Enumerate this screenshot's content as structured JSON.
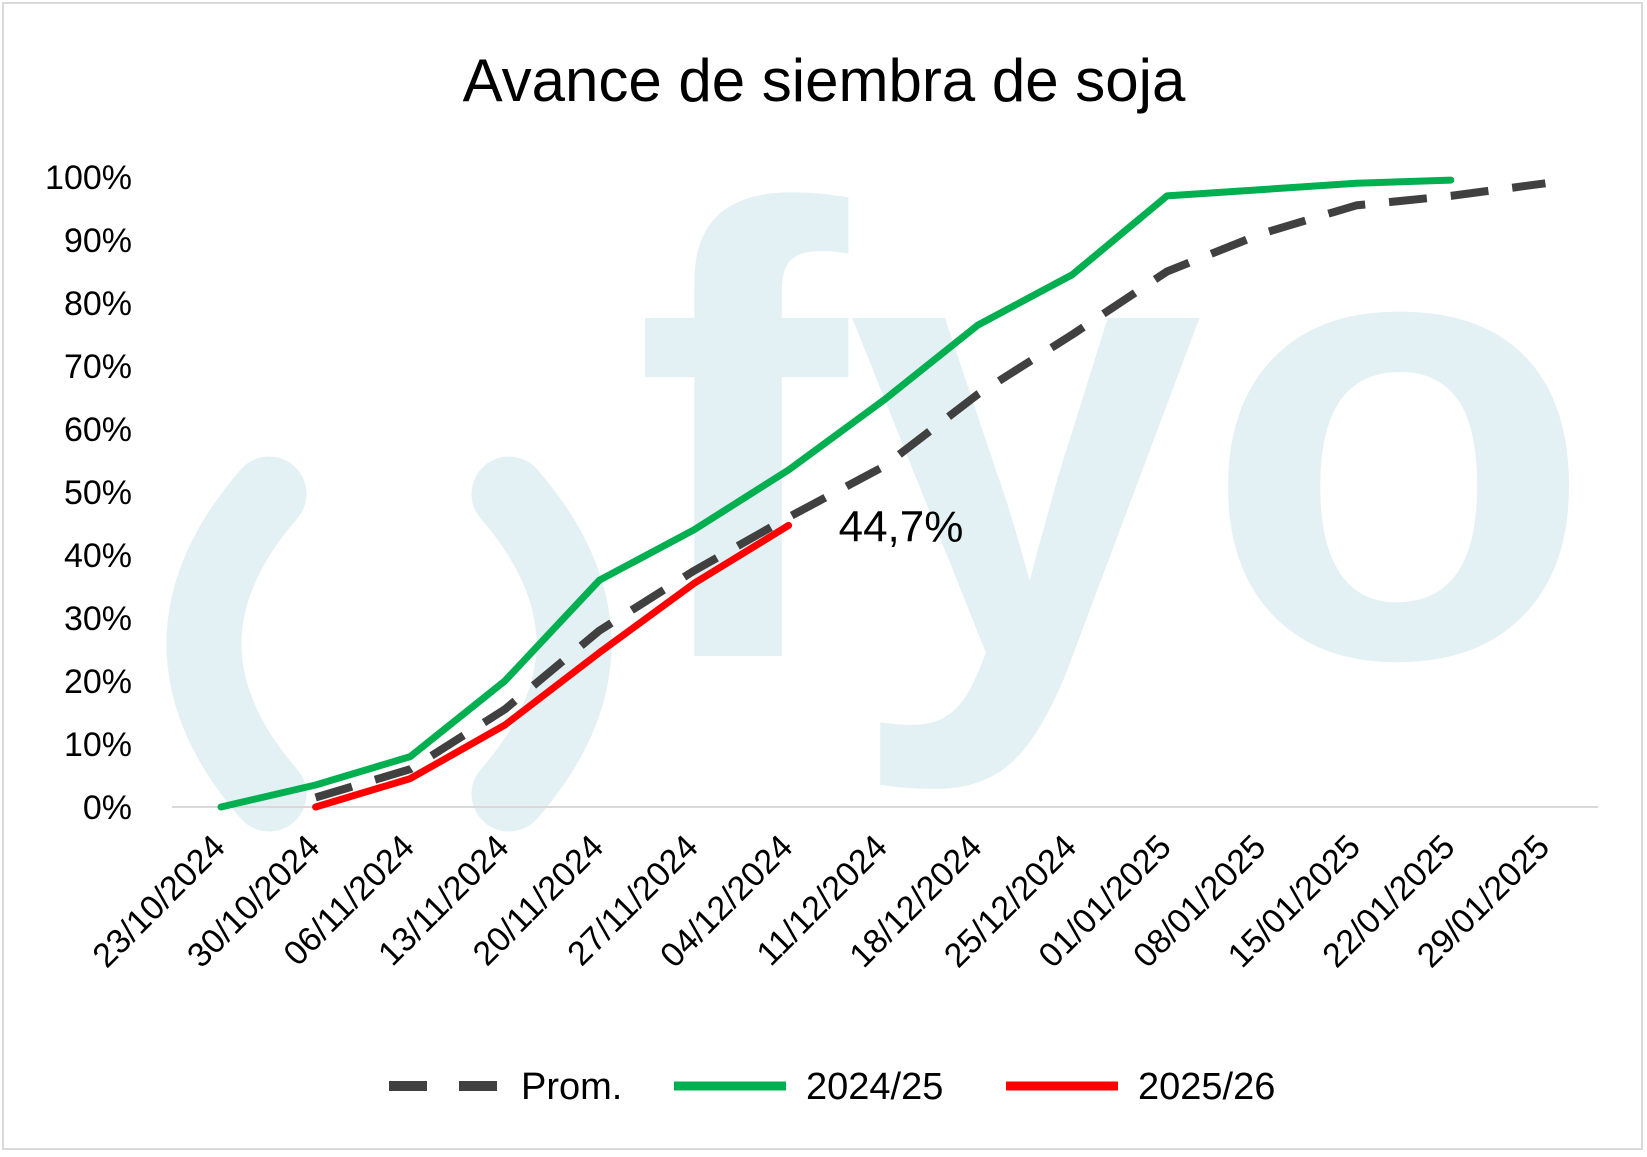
{
  "chart_data": {
    "type": "line",
    "title": "Avance de siembra de soja",
    "xlabel": "",
    "ylabel": "",
    "categories": [
      "23/10/2024",
      "30/10/2024",
      "06/11/2024",
      "13/11/2024",
      "20/11/2024",
      "27/11/2024",
      "04/12/2024",
      "11/12/2024",
      "18/12/2024",
      "25/12/2024",
      "01/01/2025",
      "08/01/2025",
      "15/01/2025",
      "22/01/2025",
      "29/01/2025"
    ],
    "y_ticks": [
      "0%",
      "10%",
      "20%",
      "30%",
      "40%",
      "50%",
      "60%",
      "70%",
      "80%",
      "90%",
      "100%"
    ],
    "ylim": [
      0,
      100
    ],
    "grid": false,
    "legend_position": "bottom",
    "series": [
      {
        "name": "Prom.",
        "style": "dashed",
        "color": "#404040",
        "values": [
          null,
          1.5,
          6,
          15.5,
          28,
          37.5,
          46,
          54,
          65.5,
          75,
          85,
          91,
          95.5,
          97,
          99
        ]
      },
      {
        "name": "2024/25",
        "style": "solid",
        "color": "#00b050",
        "values": [
          0,
          3.5,
          8,
          20,
          36,
          44,
          53.5,
          64.5,
          76.5,
          84.5,
          97,
          98,
          99,
          99.5,
          null
        ]
      },
      {
        "name": "2025/26",
        "style": "solid",
        "color": "#ff0000",
        "values": [
          null,
          0,
          4.5,
          13,
          24.5,
          35.5,
          44.7,
          null,
          null,
          null,
          null,
          null,
          null,
          null,
          null
        ]
      }
    ],
    "annotations": [
      {
        "text": "44,7%",
        "category": "04/12/2024",
        "series": "2025/26"
      }
    ]
  },
  "watermark": {
    "text": "fyo",
    "color": "#e4f1f4"
  }
}
